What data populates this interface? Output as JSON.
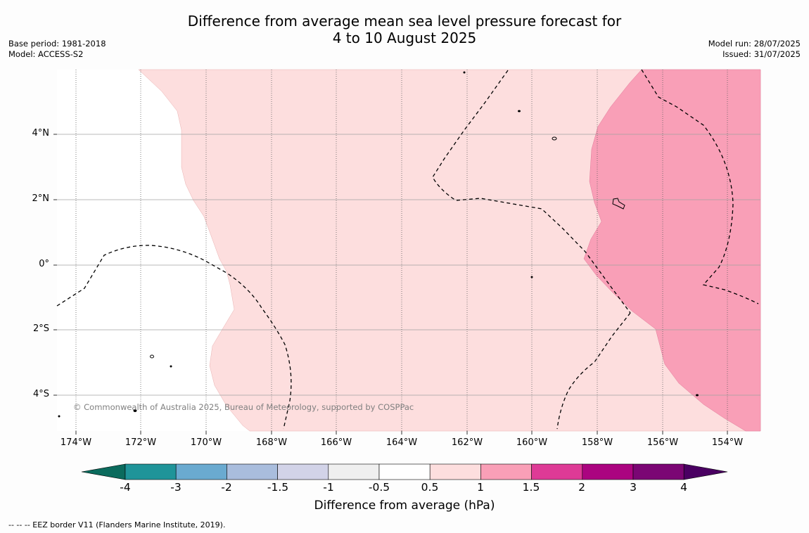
{
  "title": {
    "line1": "Difference from average mean sea level pressure forecast for",
    "line2": "4 to 10 August 2025"
  },
  "meta": {
    "base_period": "Base period: 1981-2018",
    "model": "Model: ACCESS-S2",
    "model_run": "Model run: 28/07/2025",
    "issued": "Issued: 31/07/2025"
  },
  "map": {
    "lat_labels": [
      "4°N",
      "2°N",
      "0°",
      "2°S",
      "4°S"
    ],
    "lon_labels": [
      "174°W",
      "172°W",
      "170°W",
      "168°W",
      "166°W",
      "164°W",
      "162°W",
      "160°W",
      "158°W",
      "156°W",
      "154°W"
    ],
    "copyright": "© Commonwealth of Australia 2025, Bureau of Meteorology, supported by COSPPac",
    "colors": {
      "anomaly_0_5_to_1": "#fddede",
      "anomaly_1_to_1_5": "#f99fb7",
      "eez_border": "#000000",
      "grid": "#a0a0a0"
    }
  },
  "colorbar": {
    "label": "Difference from average (hPa)",
    "ticks": [
      "-4",
      "-3",
      "-2",
      "-1.5",
      "-1",
      "-0.5",
      "0.5",
      "1",
      "1.5",
      "2",
      "3",
      "4"
    ],
    "colors": [
      "#0b6b5d",
      "#1f9499",
      "#6aaad0",
      "#a9bddd",
      "#d2d3e8",
      "#efefef",
      "#ffffff",
      "#fddede",
      "#f99fb7",
      "#de3a96",
      "#ab0480",
      "#7b0674",
      "#4a0062"
    ]
  },
  "footnote": "-- -- -- EEZ border V11 (Flanders Marine Institute, 2019)."
}
